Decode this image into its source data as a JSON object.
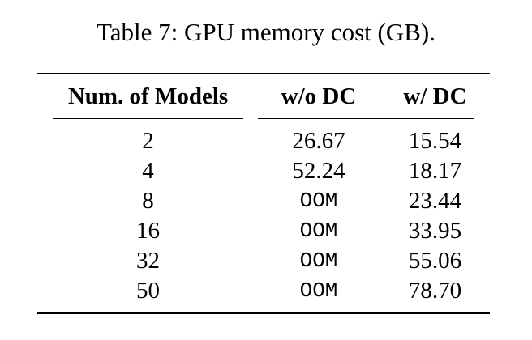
{
  "caption": "Table 7: GPU memory cost (GB).",
  "headers": {
    "models": "Num. of Models",
    "without_dc": "w/o DC",
    "with_dc": "w/ DC"
  },
  "rows": [
    {
      "models": "2",
      "without_dc": "26.67",
      "with_dc": "15.54"
    },
    {
      "models": "4",
      "without_dc": "52.24",
      "with_dc": "18.17"
    },
    {
      "models": "8",
      "without_dc": "OOM",
      "with_dc": "23.44"
    },
    {
      "models": "16",
      "without_dc": "OOM",
      "with_dc": "33.95"
    },
    {
      "models": "32",
      "without_dc": "OOM",
      "with_dc": "55.06"
    },
    {
      "models": "50",
      "without_dc": "OOM",
      "with_dc": "78.70"
    }
  ]
}
